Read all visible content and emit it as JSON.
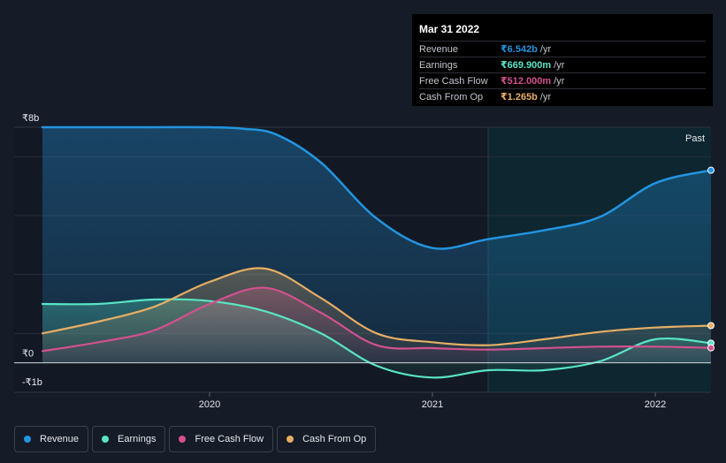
{
  "chart_data": {
    "type": "line",
    "ylim": [
      -1,
      8
    ],
    "y_ticks": [
      {
        "value": 8,
        "label": "₹8b"
      },
      {
        "value": 0,
        "label": "₹0"
      },
      {
        "value": -1,
        "label": "-₹1b"
      }
    ],
    "x_ticks": [
      {
        "value": 2020,
        "label": "2020"
      },
      {
        "value": 2021,
        "label": "2021"
      },
      {
        "value": 2022,
        "label": "2022"
      }
    ],
    "xlim": [
      2019.25,
      2022.25
    ],
    "past_start": 2021.25,
    "past_label": "Past",
    "series": [
      {
        "name": "Revenue",
        "color": "#2394df",
        "fill": true,
        "points": [
          [
            2019.25,
            8.0
          ],
          [
            2019.5,
            8.0
          ],
          [
            2019.75,
            8.0
          ],
          [
            2020.0,
            8.0
          ],
          [
            2020.15,
            7.95
          ],
          [
            2020.3,
            7.75
          ],
          [
            2020.5,
            6.8
          ],
          [
            2020.75,
            4.9
          ],
          [
            2021.0,
            3.9
          ],
          [
            2021.25,
            4.2
          ],
          [
            2021.5,
            4.5
          ],
          [
            2021.75,
            4.95
          ],
          [
            2022.0,
            6.1
          ],
          [
            2022.25,
            6.54
          ]
        ]
      },
      {
        "name": "Earnings",
        "color": "#58e5c4",
        "fill": true,
        "points": [
          [
            2019.25,
            2.0
          ],
          [
            2019.5,
            2.0
          ],
          [
            2019.75,
            2.15
          ],
          [
            2020.0,
            2.1
          ],
          [
            2020.25,
            1.75
          ],
          [
            2020.5,
            1.0
          ],
          [
            2020.75,
            -0.1
          ],
          [
            2021.0,
            -0.5
          ],
          [
            2021.25,
            -0.25
          ],
          [
            2021.5,
            -0.25
          ],
          [
            2021.75,
            0.05
          ],
          [
            2022.0,
            0.8
          ],
          [
            2022.25,
            0.67
          ]
        ]
      },
      {
        "name": "Free Cash Flow",
        "color": "#d4508f",
        "fill": true,
        "points": [
          [
            2019.25,
            0.4
          ],
          [
            2019.5,
            0.7
          ],
          [
            2019.75,
            1.1
          ],
          [
            2020.0,
            2.0
          ],
          [
            2020.25,
            2.55
          ],
          [
            2020.5,
            1.7
          ],
          [
            2020.75,
            0.6
          ],
          [
            2021.0,
            0.5
          ],
          [
            2021.25,
            0.45
          ],
          [
            2021.5,
            0.5
          ],
          [
            2021.75,
            0.55
          ],
          [
            2022.0,
            0.55
          ],
          [
            2022.25,
            0.51
          ]
        ]
      },
      {
        "name": "Cash From Op",
        "color": "#e7ae64",
        "fill": true,
        "points": [
          [
            2019.25,
            1.0
          ],
          [
            2019.5,
            1.4
          ],
          [
            2019.75,
            1.9
          ],
          [
            2020.0,
            2.75
          ],
          [
            2020.25,
            3.2
          ],
          [
            2020.5,
            2.2
          ],
          [
            2020.75,
            1.0
          ],
          [
            2021.0,
            0.7
          ],
          [
            2021.25,
            0.6
          ],
          [
            2021.5,
            0.8
          ],
          [
            2021.75,
            1.05
          ],
          [
            2022.0,
            1.2
          ],
          [
            2022.25,
            1.265
          ]
        ]
      }
    ]
  },
  "tooltip": {
    "date": "Mar 31 2022",
    "rows": [
      {
        "label": "Revenue",
        "value": "₹6.542b",
        "unit": "/yr",
        "color": "#2394df"
      },
      {
        "label": "Earnings",
        "value": "₹669.900m",
        "unit": "/yr",
        "color": "#58e5c4"
      },
      {
        "label": "Free Cash Flow",
        "value": "₹512.000m",
        "unit": "/yr",
        "color": "#d4508f"
      },
      {
        "label": "Cash From Op",
        "value": "₹1.265b",
        "unit": "/yr",
        "color": "#e7ae64"
      }
    ]
  },
  "legend": [
    {
      "label": "Revenue",
      "color": "#2394df"
    },
    {
      "label": "Earnings",
      "color": "#58e5c4"
    },
    {
      "label": "Free Cash Flow",
      "color": "#d4508f"
    },
    {
      "label": "Cash From Op",
      "color": "#e7ae64"
    }
  ]
}
